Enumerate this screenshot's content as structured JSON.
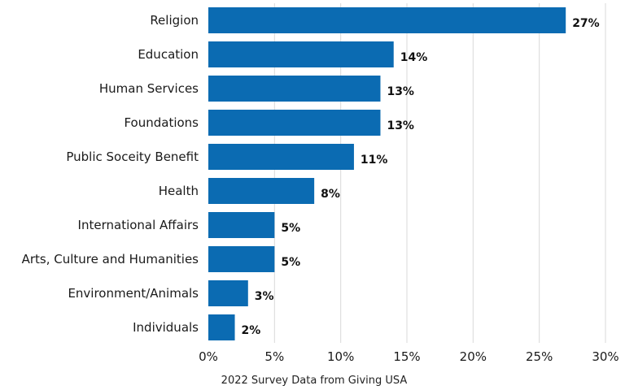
{
  "chart_data": {
    "type": "bar",
    "orientation": "horizontal",
    "categories": [
      "Religion",
      "Education",
      "Human Services",
      "Foundations",
      "Public Soceity Benefit",
      "Health",
      "International Affairs",
      "Arts, Culture and Humanities",
      "Environment/Animals",
      "Individuals"
    ],
    "values": [
      27,
      14,
      13,
      13,
      11,
      8,
      5,
      5,
      3,
      2
    ],
    "value_labels": [
      "27%",
      "14%",
      "13%",
      "13%",
      "11%",
      "8%",
      "5%",
      "5%",
      "3%",
      "2%"
    ],
    "xlim": [
      0,
      30
    ],
    "xticks": [
      0,
      5,
      10,
      15,
      20,
      25,
      30
    ],
    "xtick_labels": [
      "0%",
      "5%",
      "10%",
      "15%",
      "20%",
      "25%",
      "30%"
    ],
    "xlabel": "2022 Survey Data from Giving USA",
    "ylabel": "",
    "title": "",
    "grid": true,
    "bar_color": "#0b6bb2"
  }
}
